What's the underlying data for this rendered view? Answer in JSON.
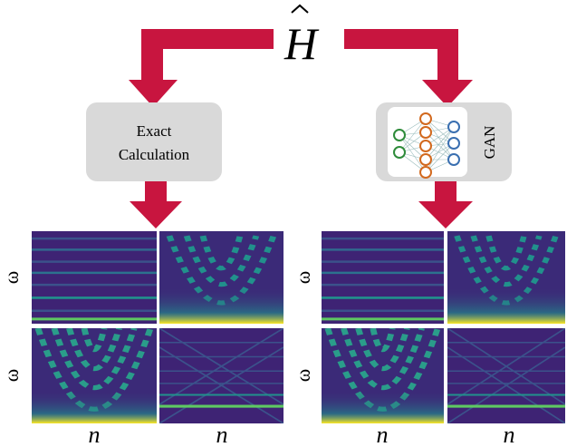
{
  "title": {
    "symbol": "H"
  },
  "boxes": [
    {
      "lines": [
        "Exact",
        "Calculation"
      ]
    },
    {
      "label": "GAN"
    }
  ],
  "axes": {
    "y_label": "ω",
    "x_label": "n"
  }
}
